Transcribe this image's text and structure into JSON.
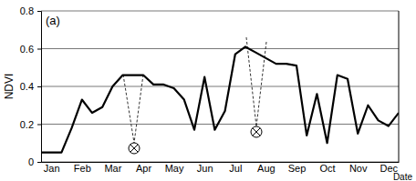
{
  "chart_data": {
    "type": "line",
    "panel_label": "(a)",
    "y_label": "NDVI",
    "x_label": "Date",
    "categories": [
      null,
      "Jan",
      null,
      null,
      "Feb",
      null,
      null,
      "Mar",
      null,
      null,
      "Apr",
      null,
      null,
      "May",
      null,
      null,
      "Jun",
      null,
      null,
      "Jul",
      null,
      null,
      "Aug",
      null,
      null,
      "Sep",
      null,
      null,
      "Oct",
      null,
      null,
      "Nov",
      null,
      null,
      "Dec",
      null
    ],
    "series": [
      {
        "name": "NDVI",
        "color": "#000000",
        "values": [
          0.05,
          0.05,
          0.05,
          0.18,
          0.33,
          0.26,
          0.29,
          0.4,
          0.46,
          0.46,
          0.46,
          0.41,
          0.41,
          0.39,
          0.33,
          0.17,
          0.45,
          0.17,
          0.27,
          0.57,
          0.61,
          0.58,
          0.55,
          0.52,
          0.52,
          0.51,
          0.14,
          0.36,
          0.1,
          0.46,
          0.44,
          0.15,
          0.3,
          0.22,
          0.19,
          0.26
        ]
      }
    ],
    "ylim": [
      0,
      0.8
    ],
    "yticks": [
      0,
      0.2,
      0.4,
      0.6,
      0.8
    ],
    "grid": true
  }
}
